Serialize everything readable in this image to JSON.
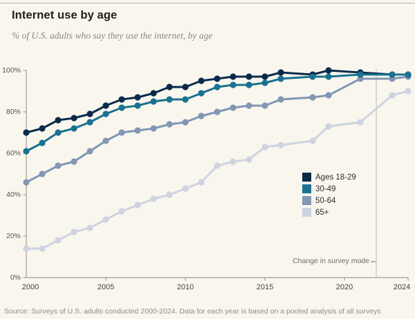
{
  "header": {
    "title": "Internet use by age",
    "subtitle": "% of U.S. adults who say they use the internet, by age"
  },
  "chart_data": {
    "type": "line",
    "title": "Internet use by age",
    "subtitle": "% of U.S. adults who say they use the internet, by age",
    "xlim": [
      2000,
      2024
    ],
    "ylim": [
      0,
      100
    ],
    "grid": false,
    "legend_position": "right-middle",
    "marker": "circle",
    "x": [
      2000,
      2001,
      2002,
      2003,
      2004,
      2005,
      2006,
      2007,
      2008,
      2009,
      2010,
      2011,
      2012,
      2013,
      2014,
      2015,
      2016,
      2018,
      2019,
      2021,
      2023,
      2024
    ],
    "series": [
      {
        "name": "Ages 18-29",
        "color": "#0a2a4a",
        "values": [
          70,
          72,
          76,
          77,
          79,
          83,
          86,
          87,
          89,
          92,
          92,
          95,
          96,
          97,
          97,
          97,
          99,
          98,
          100,
          99,
          98,
          98
        ]
      },
      {
        "name": "30-49",
        "color": "#1a7190",
        "values": [
          61,
          65,
          70,
          72,
          75,
          79,
          82,
          83,
          85,
          86,
          86,
          89,
          92,
          93,
          93,
          94,
          96,
          97,
          97,
          98,
          98,
          98
        ]
      },
      {
        "name": "50-64",
        "color": "#8296b5",
        "values": [
          46,
          50,
          54,
          56,
          61,
          66,
          70,
          71,
          72,
          74,
          75,
          78,
          80,
          82,
          83,
          83,
          86,
          87,
          88,
          96,
          96,
          97
        ]
      },
      {
        "name": "65+",
        "color": "#ced3e0",
        "values": [
          14,
          14,
          18,
          22,
          24,
          28,
          32,
          35,
          38,
          40,
          43,
          46,
          54,
          56,
          57,
          63,
          64,
          66,
          73,
          75,
          88,
          90
        ]
      }
    ],
    "y_ticks": [
      {
        "label": "0%",
        "value": 0
      },
      {
        "label": "20%",
        "value": 20
      },
      {
        "label": "40%",
        "value": 40
      },
      {
        "label": "60%",
        "value": 60
      },
      {
        "label": "80%",
        "value": 80
      },
      {
        "label": "100%",
        "value": 100
      }
    ],
    "x_ticks": [
      {
        "label": "2000",
        "year": 2000
      },
      {
        "label": "2005",
        "year": 2005
      },
      {
        "label": "2010",
        "year": 2010
      },
      {
        "label": "2015",
        "year": 2015
      },
      {
        "label": "2020",
        "year": 2020
      },
      {
        "label": "2024",
        "year": 2024
      }
    ],
    "annotation": {
      "label": "Change in survey mode",
      "year": 2022
    }
  },
  "colors": {
    "background": "#f9f6ee",
    "axis": "#a39d90",
    "annotation_line": "#c9c3b7",
    "top_rule": "#b8b3a8"
  },
  "footer": {
    "source": "Source: Surveys of U.S. adults conducted 2000-2024. Data for each year is based on a pooled analysis of all surveys"
  }
}
